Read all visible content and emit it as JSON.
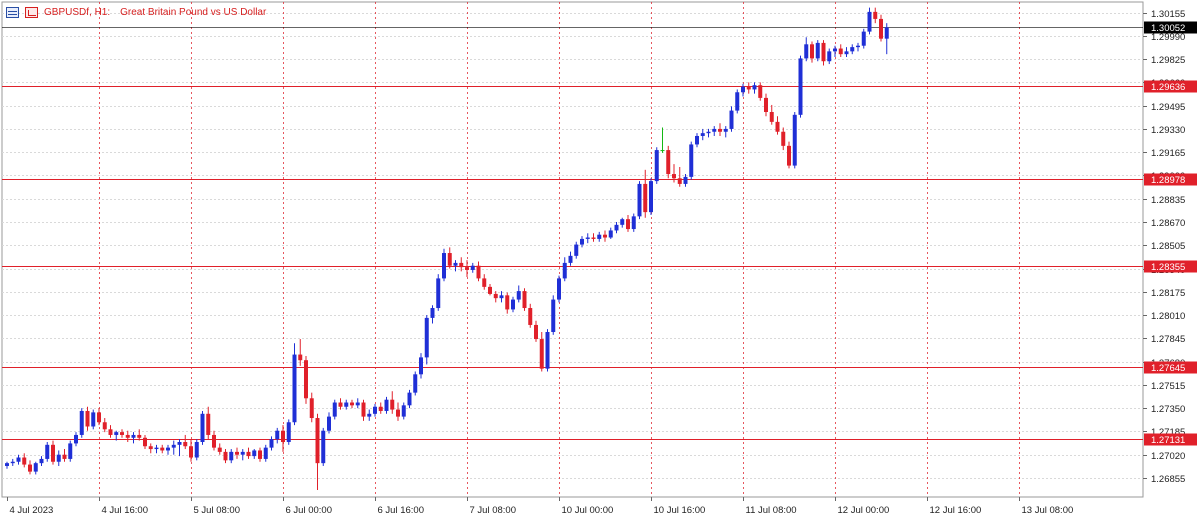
{
  "header": {
    "symbol_tf": "GBPUSDf, H1:",
    "description": "Great Britain Pound vs US Dollar",
    "icons": [
      "chart-list-icon",
      "chart-properties-icon"
    ]
  },
  "colors": {
    "bull": "#1f2fd6",
    "bear": "#e0202a",
    "wick_bull": "#1f2fd6",
    "wick_bear": "#e0202a",
    "doji": "#14b814",
    "level_line": "#e0202a",
    "current_line": "#000000",
    "grid": "#d9d9d9",
    "time_sep": "#e0202a",
    "axis_text": "#222222",
    "level_label_bg": "#e0202a",
    "current_label_bg": "#000000"
  },
  "chart_data": {
    "type": "candlestick",
    "title": "",
    "xlabel": "",
    "ylabel": "",
    "grid": true,
    "ylim": [
      1.2672,
      1.3023
    ],
    "y_ticks": [
      "1.30155",
      "1.29990",
      "1.29825",
      "1.29660",
      "1.29495",
      "1.29330",
      "1.29165",
      "1.29000",
      "1.28835",
      "1.28670",
      "1.28505",
      "1.28340",
      "1.28175",
      "1.28010",
      "1.27845",
      "1.27680",
      "1.27515",
      "1.27350",
      "1.27185",
      "1.27020",
      "1.26855"
    ],
    "x_labels": [
      {
        "label": "4 Jul 2023",
        "bar": 0
      },
      {
        "label": "4 Jul 16:00",
        "bar": 16
      },
      {
        "label": "5 Jul 08:00",
        "bar": 32
      },
      {
        "label": "6 Jul 00:00",
        "bar": 48
      },
      {
        "label": "6 Jul 16:00",
        "bar": 64
      },
      {
        "label": "7 Jul 08:00",
        "bar": 80
      },
      {
        "label": "10 Jul 00:00",
        "bar": 96
      },
      {
        "label": "10 Jul 16:00",
        "bar": 112
      },
      {
        "label": "11 Jul 08:00",
        "bar": 128
      },
      {
        "label": "12 Jul 00:00",
        "bar": 144
      },
      {
        "label": "12 Jul 16:00",
        "bar": 160
      },
      {
        "label": "13 Jul 08:00",
        "bar": 176
      }
    ],
    "levels": [
      {
        "label": "1.29636",
        "value": 1.29636
      },
      {
        "label": "1.28978",
        "value": 1.28978
      },
      {
        "label": "1.28355",
        "value": 1.28355
      },
      {
        "label": "1.27645",
        "value": 1.27645
      },
      {
        "label": "1.27131",
        "value": 1.27131
      }
    ],
    "current_price": {
      "label": "1.30052",
      "value": 1.30052
    },
    "candles": [
      [
        1.2694,
        1.2697,
        1.2692,
        1.2696
      ],
      [
        1.2696,
        1.2699,
        1.2694,
        1.2697
      ],
      [
        1.2697,
        1.2702,
        1.2695,
        1.27
      ],
      [
        1.27,
        1.2703,
        1.2693,
        1.2695
      ],
      [
        1.2695,
        1.2698,
        1.2688,
        1.269
      ],
      [
        1.269,
        1.2697,
        1.2688,
        1.2696
      ],
      [
        1.2696,
        1.2701,
        1.2694,
        1.2699
      ],
      [
        1.2699,
        1.2711,
        1.2697,
        1.2709
      ],
      [
        1.2709,
        1.2712,
        1.2695,
        1.2697
      ],
      [
        1.2697,
        1.2705,
        1.2694,
        1.2702
      ],
      [
        1.2702,
        1.2706,
        1.2697,
        1.2699
      ],
      [
        1.2699,
        1.2712,
        1.2697,
        1.271
      ],
      [
        1.271,
        1.2718,
        1.2708,
        1.2716
      ],
      [
        1.2716,
        1.2735,
        1.2714,
        1.2733
      ],
      [
        1.2733,
        1.2736,
        1.2719,
        1.2722
      ],
      [
        1.2722,
        1.2734,
        1.272,
        1.2732
      ],
      [
        1.2732,
        1.2735,
        1.2723,
        1.2725
      ],
      [
        1.2725,
        1.2728,
        1.2718,
        1.272
      ],
      [
        1.272,
        1.2723,
        1.2714,
        1.2716
      ],
      [
        1.2716,
        1.2719,
        1.2712,
        1.2718
      ],
      [
        1.2718,
        1.272,
        1.2714,
        1.2716
      ],
      [
        1.2716,
        1.2719,
        1.2711,
        1.2714
      ],
      [
        1.2714,
        1.2718,
        1.271,
        1.2716
      ],
      [
        1.2716,
        1.272,
        1.2712,
        1.2714
      ],
      [
        1.2714,
        1.2716,
        1.2706,
        1.2708
      ],
      [
        1.2708,
        1.271,
        1.2703,
        1.2706
      ],
      [
        1.2706,
        1.2709,
        1.2703,
        1.2707
      ],
      [
        1.2707,
        1.2709,
        1.2703,
        1.2705
      ],
      [
        1.2705,
        1.2709,
        1.2702,
        1.2707
      ],
      [
        1.2707,
        1.2712,
        1.2702,
        1.2709
      ],
      [
        1.2709,
        1.2713,
        1.2701,
        1.2711
      ],
      [
        1.2711,
        1.2716,
        1.2706,
        1.2708
      ],
      [
        1.2708,
        1.2713,
        1.2697,
        1.27
      ],
      [
        1.27,
        1.2713,
        1.2698,
        1.2711
      ],
      [
        1.2711,
        1.2733,
        1.2709,
        1.2731
      ],
      [
        1.2731,
        1.2736,
        1.2713,
        1.2716
      ],
      [
        1.2716,
        1.2719,
        1.2705,
        1.2707
      ],
      [
        1.2707,
        1.271,
        1.2702,
        1.2704
      ],
      [
        1.2704,
        1.2706,
        1.2696,
        1.2698
      ],
      [
        1.2698,
        1.2706,
        1.2696,
        1.2704
      ],
      [
        1.2704,
        1.2707,
        1.2699,
        1.2702
      ],
      [
        1.2702,
        1.2706,
        1.2698,
        1.2704
      ],
      [
        1.2704,
        1.2707,
        1.2699,
        1.2701
      ],
      [
        1.2701,
        1.2706,
        1.2699,
        1.2705
      ],
      [
        1.2705,
        1.2707,
        1.2697,
        1.2699
      ],
      [
        1.2699,
        1.2709,
        1.2697,
        1.2707
      ],
      [
        1.2707,
        1.2715,
        1.2705,
        1.2713
      ],
      [
        1.2713,
        1.2721,
        1.271,
        1.2719
      ],
      [
        1.2719,
        1.2723,
        1.2704,
        1.2711
      ],
      [
        1.2711,
        1.2727,
        1.2709,
        1.2725
      ],
      [
        1.2725,
        1.2781,
        1.2723,
        1.2773
      ],
      [
        1.2773,
        1.2784,
        1.2765,
        1.2769
      ],
      [
        1.2769,
        1.2772,
        1.2738,
        1.2742
      ],
      [
        1.2742,
        1.2746,
        1.2725,
        1.2728
      ],
      [
        1.2728,
        1.2731,
        1.2677,
        1.2696
      ],
      [
        1.2696,
        1.2721,
        1.2694,
        1.2719
      ],
      [
        1.2719,
        1.2732,
        1.2717,
        1.2729
      ],
      [
        1.2729,
        1.2741,
        1.2727,
        1.2739
      ],
      [
        1.2739,
        1.2742,
        1.2734,
        1.2736
      ],
      [
        1.2736,
        1.2741,
        1.2734,
        1.2739
      ],
      [
        1.2739,
        1.2741,
        1.2735,
        1.2737
      ],
      [
        1.2737,
        1.2742,
        1.2735,
        1.2739
      ],
      [
        1.2739,
        1.2741,
        1.2726,
        1.2729
      ],
      [
        1.2729,
        1.2734,
        1.2726,
        1.2731
      ],
      [
        1.2731,
        1.2738,
        1.2729,
        1.2736
      ],
      [
        1.2736,
        1.2739,
        1.2731,
        1.2733
      ],
      [
        1.2733,
        1.2743,
        1.2731,
        1.2741
      ],
      [
        1.2741,
        1.2747,
        1.2731,
        1.2734
      ],
      [
        1.2734,
        1.2739,
        1.2726,
        1.2729
      ],
      [
        1.2729,
        1.2739,
        1.2727,
        1.2737
      ],
      [
        1.2737,
        1.2748,
        1.2735,
        1.2746
      ],
      [
        1.2746,
        1.2761,
        1.2744,
        1.2759
      ],
      [
        1.2759,
        1.2774,
        1.2756,
        1.2771
      ],
      [
        1.2771,
        1.2801,
        1.2766,
        1.2799
      ],
      [
        1.2799,
        1.2808,
        1.2795,
        1.2806
      ],
      [
        1.2806,
        1.283,
        1.2804,
        1.2827
      ],
      [
        1.2827,
        1.2848,
        1.2825,
        1.2845
      ],
      [
        1.2845,
        1.2849,
        1.2834,
        1.2836
      ],
      [
        1.2836,
        1.284,
        1.2832,
        1.2838
      ],
      [
        1.2838,
        1.2842,
        1.2832,
        1.2835
      ],
      [
        1.2835,
        1.284,
        1.2828,
        1.2833
      ],
      [
        1.2833,
        1.2838,
        1.2831,
        1.2836
      ],
      [
        1.2836,
        1.2839,
        1.2825,
        1.2827
      ],
      [
        1.2827,
        1.283,
        1.2819,
        1.2821
      ],
      [
        1.2821,
        1.2823,
        1.2815,
        1.2816
      ],
      [
        1.2816,
        1.2818,
        1.281,
        1.2813
      ],
      [
        1.2813,
        1.2818,
        1.281,
        1.2815
      ],
      [
        1.2815,
        1.2817,
        1.2802,
        1.2805
      ],
      [
        1.2805,
        1.2814,
        1.2803,
        1.2812
      ],
      [
        1.2812,
        1.2822,
        1.281,
        1.2818
      ],
      [
        1.2818,
        1.282,
        1.2804,
        1.2806
      ],
      [
        1.2806,
        1.2809,
        1.2792,
        1.2794
      ],
      [
        1.2794,
        1.2797,
        1.2782,
        1.2784
      ],
      [
        1.2784,
        1.2789,
        1.2761,
        1.2763
      ],
      [
        1.2763,
        1.2791,
        1.2761,
        1.2789
      ],
      [
        1.2789,
        1.2815,
        1.2787,
        1.2812
      ],
      [
        1.2812,
        1.2829,
        1.281,
        1.2827
      ],
      [
        1.2827,
        1.2842,
        1.2825,
        1.2838
      ],
      [
        1.2838,
        1.2846,
        1.2836,
        1.2843
      ],
      [
        1.2843,
        1.2853,
        1.2841,
        1.2851
      ],
      [
        1.2851,
        1.2857,
        1.2849,
        1.2855
      ],
      [
        1.2855,
        1.2859,
        1.2852,
        1.2856
      ],
      [
        1.2856,
        1.2859,
        1.2853,
        1.2855
      ],
      [
        1.2855,
        1.286,
        1.2853,
        1.2858
      ],
      [
        1.2858,
        1.2861,
        1.2853,
        1.2856
      ],
      [
        1.2856,
        1.2863,
        1.2855,
        1.2861
      ],
      [
        1.2861,
        1.2867,
        1.2859,
        1.2865
      ],
      [
        1.2865,
        1.287,
        1.2863,
        1.2869
      ],
      [
        1.2869,
        1.2872,
        1.286,
        1.2862
      ],
      [
        1.2862,
        1.2873,
        1.286,
        1.2871
      ],
      [
        1.2871,
        1.2896,
        1.2869,
        1.2894
      ],
      [
        1.2894,
        1.2904,
        1.287,
        1.2874
      ],
      [
        1.2874,
        1.2898,
        1.2872,
        1.2896
      ],
      [
        1.2896,
        1.292,
        1.2894,
        1.2918
      ],
      [
        1.2918,
        1.2934,
        1.2916,
        1.2918
      ],
      [
        1.2918,
        1.2921,
        1.2898,
        1.2901
      ],
      [
        1.2901,
        1.2908,
        1.2895,
        1.2898
      ],
      [
        1.2898,
        1.2906,
        1.2892,
        1.2894
      ],
      [
        1.2894,
        1.2901,
        1.2892,
        1.2899
      ],
      [
        1.2899,
        1.2924,
        1.2897,
        1.2922
      ],
      [
        1.2922,
        1.293,
        1.292,
        1.2928
      ],
      [
        1.2928,
        1.2933,
        1.2925,
        1.293
      ],
      [
        1.293,
        1.2933,
        1.2927,
        1.2931
      ],
      [
        1.2931,
        1.2935,
        1.2928,
        1.2933
      ],
      [
        1.2933,
        1.2937,
        1.2928,
        1.2931
      ],
      [
        1.2931,
        1.2935,
        1.2927,
        1.2933
      ],
      [
        1.2933,
        1.2949,
        1.2931,
        1.2946
      ],
      [
        1.2946,
        1.2961,
        1.2944,
        1.2959
      ],
      [
        1.2959,
        1.2965,
        1.2956,
        1.2963
      ],
      [
        1.2963,
        1.2966,
        1.2958,
        1.2961
      ],
      [
        1.2961,
        1.2966,
        1.2958,
        1.2964
      ],
      [
        1.2964,
        1.2966,
        1.2953,
        1.2955
      ],
      [
        1.2955,
        1.2958,
        1.2942,
        1.2945
      ],
      [
        1.2945,
        1.295,
        1.2936,
        1.2938
      ],
      [
        1.2938,
        1.2942,
        1.2929,
        1.2931
      ],
      [
        1.2931,
        1.2934,
        1.2918,
        1.2921
      ],
      [
        1.2921,
        1.2924,
        1.2905,
        1.2907
      ],
      [
        1.2907,
        1.2945,
        1.2905,
        1.2943
      ],
      [
        1.2943,
        1.2985,
        1.2941,
        1.2983
      ],
      [
        1.2983,
        1.2998,
        1.2981,
        1.2993
      ],
      [
        1.2993,
        1.2995,
        1.298,
        1.2983
      ],
      [
        1.2983,
        1.2996,
        1.2981,
        1.2994
      ],
      [
        1.2994,
        1.2996,
        1.2978,
        1.2981
      ],
      [
        1.2981,
        1.299,
        1.2979,
        1.2988
      ],
      [
        1.2988,
        1.2992,
        1.2984,
        1.299
      ],
      [
        1.299,
        1.2993,
        1.2984,
        1.2986
      ],
      [
        1.2986,
        1.2991,
        1.2984,
        1.2988
      ],
      [
        1.2988,
        1.2993,
        1.2986,
        1.2991
      ],
      [
        1.2991,
        1.2994,
        1.2988,
        1.2992
      ],
      [
        1.2992,
        1.3004,
        1.299,
        1.3002
      ],
      [
        1.3002,
        1.3019,
        1.3,
        1.3016
      ],
      [
        1.3016,
        1.3019,
        1.3008,
        1.3011
      ],
      [
        1.3011,
        1.3014,
        1.2995,
        1.2997
      ],
      [
        1.2997,
        1.3008,
        1.2986,
        1.3005
      ]
    ],
    "bar_index_start": 0
  }
}
